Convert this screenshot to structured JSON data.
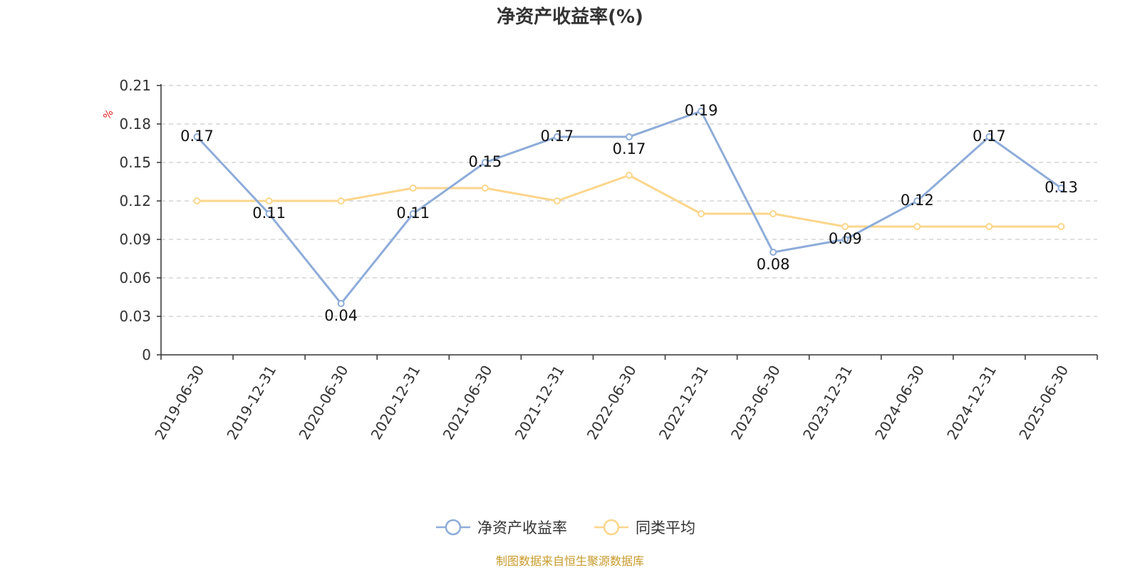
{
  "colors": {
    "series_main": "#8eacd9",
    "series_avg": "#fcd68c",
    "source_text": "#c89a2a",
    "unit_text": "#e02020",
    "grid": "#cccccc",
    "axis": "#333333"
  },
  "chart_data": {
    "type": "line",
    "title": "净资产收益率(%)",
    "ylabel": "%",
    "xlabel": "",
    "ylim": [
      0,
      0.21
    ],
    "yticks": [
      "0",
      "0.03",
      "0.06",
      "0.09",
      "0.12",
      "0.15",
      "0.18",
      "0.21"
    ],
    "grid": true,
    "legend_position": "bottom-center",
    "categories": [
      "2019-06-30",
      "2019-12-31",
      "2020-06-30",
      "2020-12-31",
      "2021-06-30",
      "2021-12-31",
      "2022-06-30",
      "2022-12-31",
      "2023-06-30",
      "2023-12-31",
      "2024-06-30",
      "2024-12-31",
      "2025-06-30"
    ],
    "series": [
      {
        "name": "净资产收益率",
        "values": [
          0.17,
          0.11,
          0.04,
          0.11,
          0.15,
          0.17,
          0.17,
          0.19,
          0.08,
          0.09,
          0.12,
          0.17,
          0.13
        ],
        "labels": [
          "0.17",
          "0.11",
          "0.04",
          "0.11",
          "0.15",
          "0.17",
          "0.17",
          "0.19",
          "0.08",
          "0.09",
          "0.12",
          "0.17",
          "0.13"
        ]
      },
      {
        "name": "同类平均",
        "values": [
          0.12,
          0.12,
          0.12,
          0.13,
          0.13,
          0.12,
          0.14,
          0.11,
          0.11,
          0.1,
          0.1,
          0.1,
          0.1
        ]
      }
    ]
  },
  "source": "制图数据来自恒生聚源数据库"
}
